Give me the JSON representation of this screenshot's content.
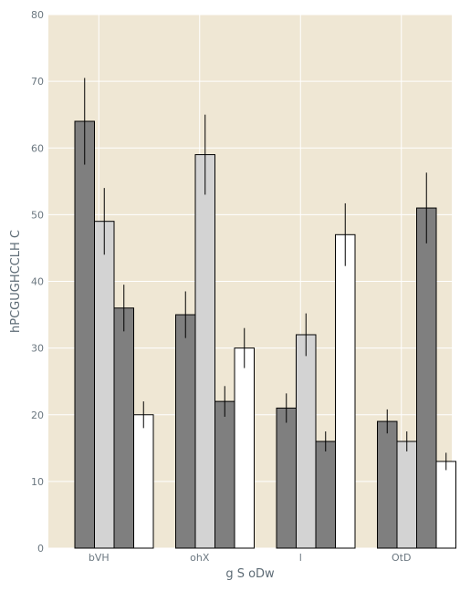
{
  "chart_data": {
    "type": "bar",
    "title": "",
    "xlabel": "g  S oDw",
    "ylabel": "hPCGUGHCCLH  C",
    "categories": [
      "bVH",
      "ohX",
      "l",
      "OtD"
    ],
    "ylim": [
      0,
      80
    ],
    "yticks": [
      0,
      10,
      20,
      30,
      40,
      50,
      60,
      70,
      80
    ],
    "grid": true,
    "legend": "none",
    "background_color": "#efe7d4",
    "grid_color": "#ffffff",
    "series": [
      {
        "color": "#7f7f7f",
        "values": [
          64,
          35,
          21,
          19
        ],
        "errors": [
          6.5,
          3.5,
          2.2,
          1.8
        ]
      },
      {
        "color": "#d3d3d3",
        "values": [
          49,
          59,
          32,
          16
        ],
        "errors": [
          5.0,
          6.0,
          3.2,
          1.5
        ]
      },
      {
        "color": "#7f7f7f",
        "values": [
          36,
          22,
          16,
          51
        ],
        "errors": [
          3.5,
          2.3,
          1.5,
          5.3
        ]
      },
      {
        "color": "#ffffff",
        "values": [
          20,
          30,
          47,
          13
        ],
        "errors": [
          2.0,
          3.0,
          4.7,
          1.3
        ]
      }
    ]
  }
}
